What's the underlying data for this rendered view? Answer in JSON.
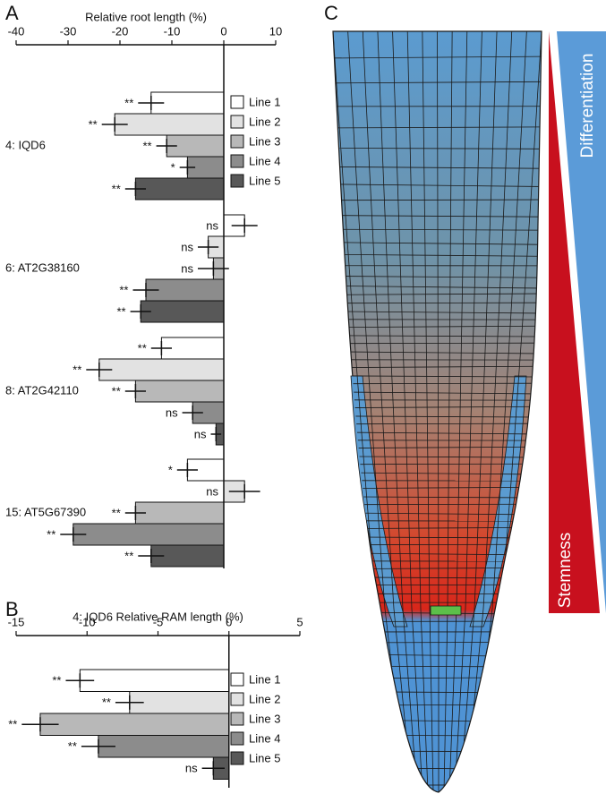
{
  "panel_labels": [
    "A",
    "B",
    "C"
  ],
  "diagram": {
    "labels": [
      "Differentiation",
      "Stemness"
    ]
  },
  "chart_data": [
    {
      "type": "bar",
      "orientation": "horizontal",
      "x_label": "Relative root length (%)",
      "xlim": [
        -40,
        10
      ],
      "xticks": [
        -40,
        -30,
        -20,
        -10,
        0,
        10
      ],
      "categories": [
        "4: IQD6",
        "6: AT2G38160",
        "8: AT2G42110",
        "15: AT5G67390"
      ],
      "series": [
        {
          "name": "Line 1",
          "color": "#ffffff",
          "values": [
            -14,
            4,
            -12,
            -7
          ],
          "errors": [
            2.5,
            2.5,
            2,
            2
          ],
          "significance": [
            "**",
            "ns",
            "**",
            "*"
          ]
        },
        {
          "name": "Line 2",
          "color": "#e2e2e2",
          "values": [
            -21,
            -3,
            -24,
            4
          ],
          "errors": [
            2.5,
            2,
            2.5,
            3
          ],
          "significance": [
            "**",
            "ns",
            "**",
            "ns"
          ]
        },
        {
          "name": "Line 3",
          "color": "#b8b8b8",
          "values": [
            -11,
            -2,
            -17,
            -17
          ],
          "errors": [
            2,
            3,
            2,
            2
          ],
          "significance": [
            "**",
            "ns",
            "**",
            "**"
          ]
        },
        {
          "name": "Line 4",
          "color": "#8c8c8c",
          "values": [
            -7,
            -15,
            -6,
            -29
          ],
          "errors": [
            1.5,
            2.5,
            2,
            2.5
          ],
          "significance": [
            "*",
            "**",
            "ns",
            "**"
          ]
        },
        {
          "name": "Line 5",
          "color": "#585858",
          "values": [
            -17,
            -16,
            -1.5,
            -14
          ],
          "errors": [
            2,
            2,
            1,
            2.5
          ],
          "significance": [
            "**",
            "**",
            "ns",
            "**"
          ]
        }
      ]
    },
    {
      "type": "bar",
      "orientation": "horizontal",
      "x_label": "4: IQD6 Relative RAM length (%)",
      "xlim": [
        -15,
        5
      ],
      "xticks": [
        -15,
        -10,
        -5,
        0,
        5
      ],
      "series": [
        {
          "name": "Line 1",
          "color": "#ffffff",
          "values": [
            -10.5
          ],
          "errors": [
            1
          ],
          "significance": [
            "**"
          ]
        },
        {
          "name": "Line 2",
          "color": "#e2e2e2",
          "values": [
            -7
          ],
          "errors": [
            1
          ],
          "significance": [
            "**"
          ]
        },
        {
          "name": "Line 3",
          "color": "#b8b8b8",
          "values": [
            -13.3
          ],
          "errors": [
            1.3
          ],
          "significance": [
            "**"
          ]
        },
        {
          "name": "Line 4",
          "color": "#8c8c8c",
          "values": [
            -9.2
          ],
          "errors": [
            1.2
          ],
          "significance": [
            "**"
          ]
        },
        {
          "name": "Line 5",
          "color": "#585858",
          "values": [
            -1.1
          ],
          "errors": [
            0.8
          ],
          "significance": [
            "ns"
          ]
        }
      ]
    }
  ]
}
